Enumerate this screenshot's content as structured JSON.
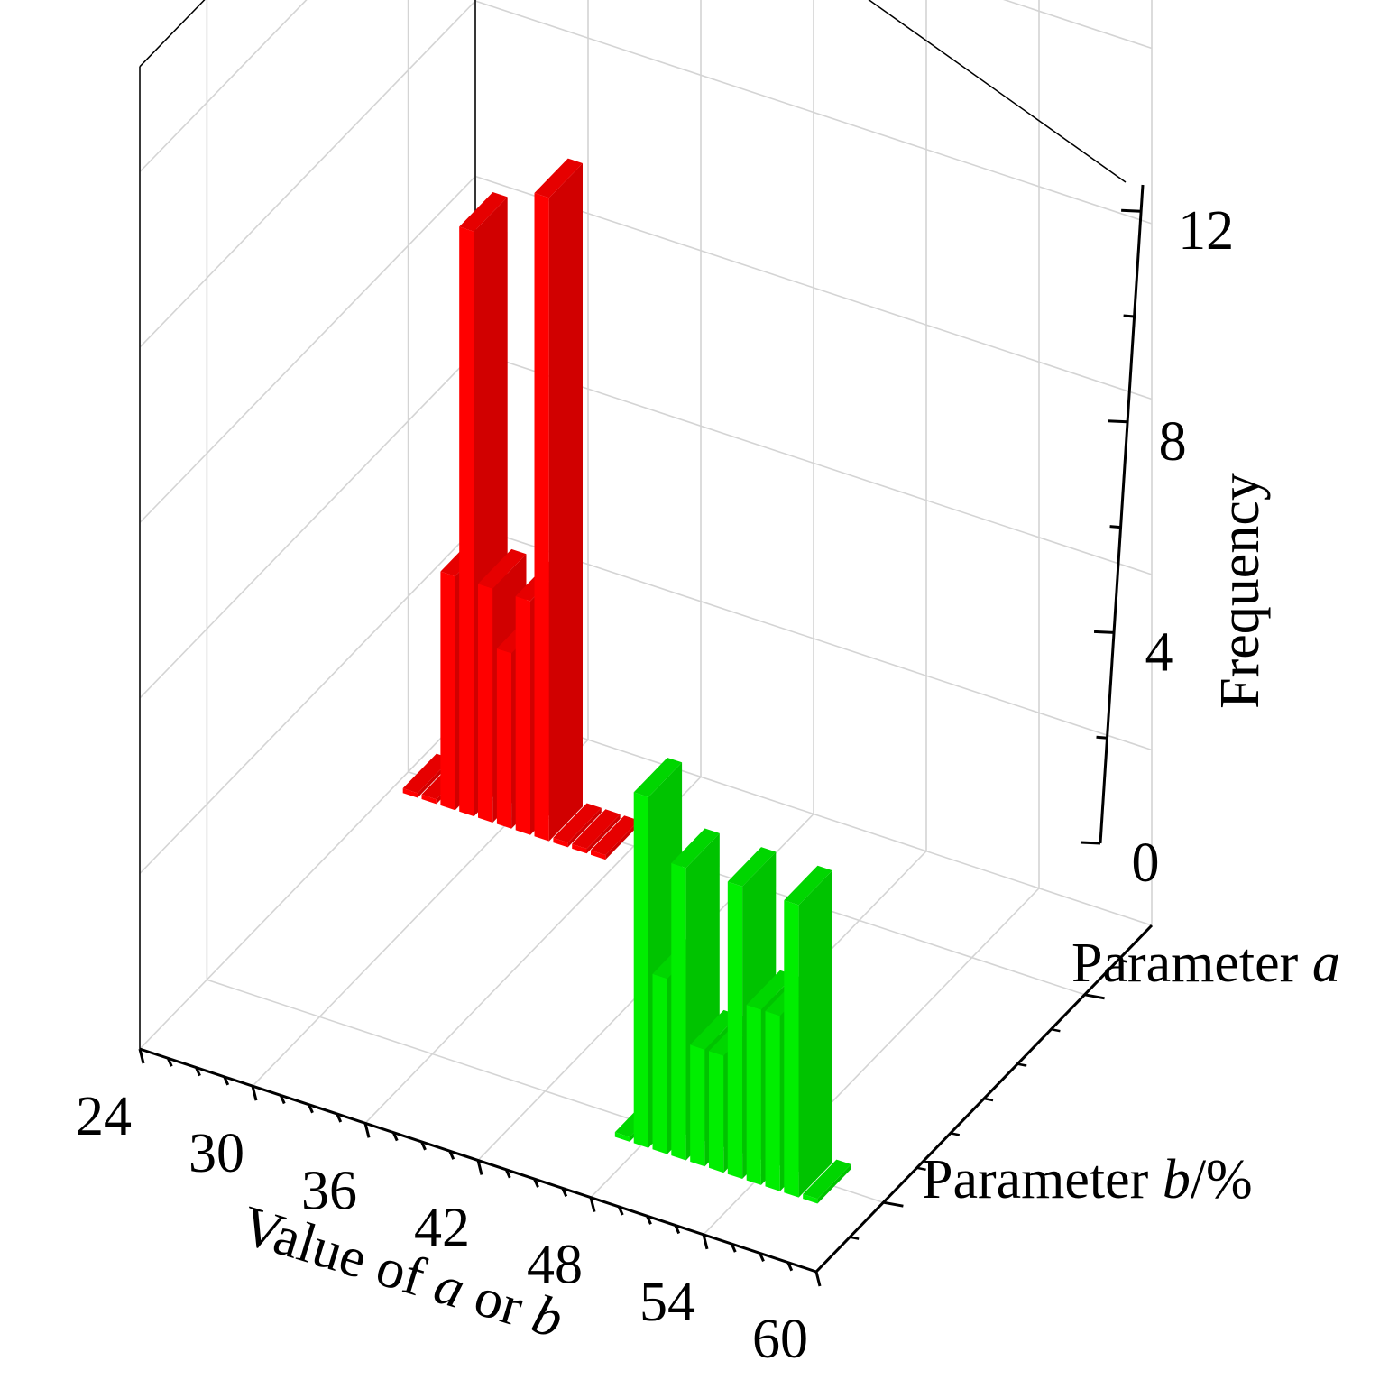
{
  "chart_data": {
    "type": "bar3d",
    "x_axis": {
      "title_parts": [
        {
          "text": "Value of ",
          "italic": false
        },
        {
          "text": "a",
          "italic": true
        },
        {
          "text": " or ",
          "italic": false
        },
        {
          "text": "b",
          "italic": true
        }
      ],
      "ticks": [
        "24",
        "30",
        "36",
        "42",
        "48",
        "54",
        "60"
      ],
      "range": [
        24,
        60
      ]
    },
    "z_axis": {
      "title": "Frequency",
      "ticks": [
        "0",
        "4",
        "8",
        "12"
      ],
      "range": [
        0,
        12
      ]
    },
    "y_axis": {
      "categories": [
        {
          "parts": [
            {
              "text": "Parameter ",
              "italic": false
            },
            {
              "text": "a",
              "italic": true
            }
          ]
        },
        {
          "parts": [
            {
              "text": "Parameter ",
              "italic": false
            },
            {
              "text": "b",
              "italic": true
            },
            {
              "text": "/%",
              "italic": false
            }
          ]
        }
      ]
    },
    "grid": true,
    "series": [
      {
        "name": "Parameter a",
        "color": "#ff0000",
        "x": [
          25,
          26,
          27,
          28,
          29,
          30,
          31,
          32,
          33,
          34,
          35
        ],
        "values": [
          0,
          0,
          4,
          10,
          4,
          3,
          4,
          11,
          0,
          0,
          0
        ]
      },
      {
        "name": "Parameter b/%",
        "color": "#00ee00",
        "x": [
          47,
          48,
          49,
          50,
          51,
          52,
          53,
          54,
          55,
          56,
          57
        ],
        "values": [
          0,
          6,
          3,
          5,
          2,
          2,
          5,
          3,
          3,
          5,
          0
        ]
      }
    ]
  }
}
